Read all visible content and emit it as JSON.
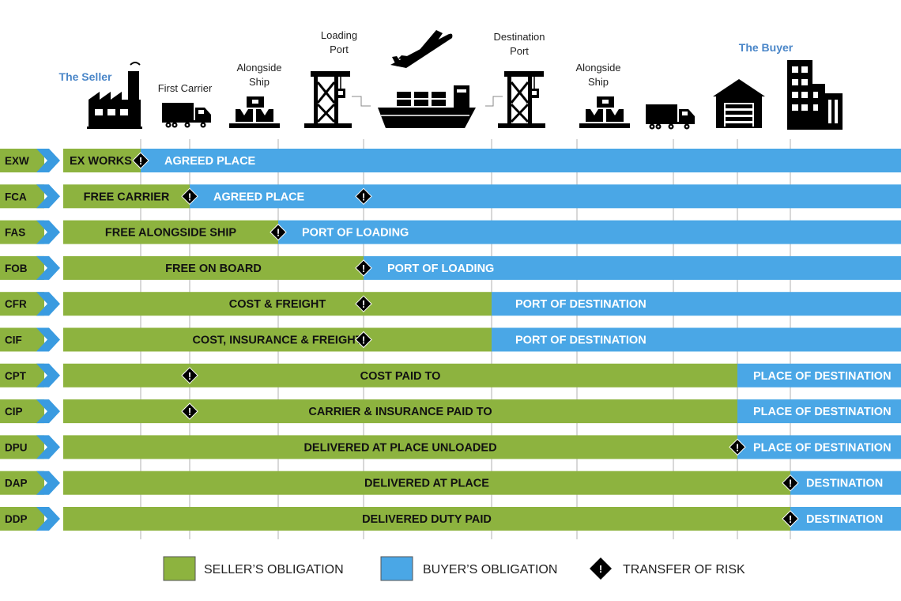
{
  "colors": {
    "seller": "#8db33f",
    "buyer": "#4aa7e6",
    "code_bg": "#8db33f",
    "chevron": "#3a9be0",
    "grid": "#b0b0b0",
    "icon": "#000000",
    "party_label": "#4a86c8"
  },
  "header": {
    "seller_label": "The Seller",
    "buyer_label": "The Buyer",
    "stations": [
      {
        "id": "first-carrier",
        "lines": [
          "First Carrier"
        ],
        "icon": "truck-icon"
      },
      {
        "id": "alongside-ship-origin",
        "lines": [
          "Alongside",
          "Ship"
        ],
        "icon": "pallet-boxes-icon"
      },
      {
        "id": "loading-port",
        "lines": [
          "Loading",
          "Port"
        ],
        "icon": "port-crane-icon"
      },
      {
        "id": "transport",
        "lines": [],
        "icon": "airplane-ship-icon"
      },
      {
        "id": "destination-port",
        "lines": [
          "Destination",
          "Port"
        ],
        "icon": "port-crane-icon"
      },
      {
        "id": "alongside-ship-destination",
        "lines": [
          "Alongside",
          "Ship"
        ],
        "icon": "pallet-boxes-icon"
      },
      {
        "id": "delivery-truck",
        "lines": [],
        "icon": "truck-icon"
      },
      {
        "id": "warehouse",
        "lines": [],
        "icon": "warehouse-icon"
      },
      {
        "id": "buyer-buildings",
        "lines": [],
        "icon": "office-buildings-icon"
      }
    ]
  },
  "rows": [
    {
      "code": "EXW",
      "seller_label": "EX WORKS",
      "buyer_label": "AGREED PLACE",
      "split": 1,
      "risk": [
        1
      ]
    },
    {
      "code": "FCA",
      "seller_label": "FREE CARRIER",
      "buyer_label": "AGREED PLACE",
      "split": 2,
      "risk": [
        2,
        4
      ]
    },
    {
      "code": "FAS",
      "seller_label": "FREE ALONGSIDE SHIP",
      "buyer_label": "PORT OF LOADING",
      "split": 3,
      "risk": [
        3
      ]
    },
    {
      "code": "FOB",
      "seller_label": "FREE  ON BOARD",
      "buyer_label": "PORT OF LOADING",
      "split": 4,
      "risk": [
        4
      ]
    },
    {
      "code": "CFR",
      "seller_label": "COST & FREIGHT",
      "buyer_label": "PORT OF DESTINATION",
      "split": 5,
      "risk": [
        4
      ]
    },
    {
      "code": "CIF",
      "seller_label": "COST, INSURANCE & FREIGHT",
      "buyer_label": "PORT OF DESTINATION",
      "split": 5,
      "risk": [
        4
      ]
    },
    {
      "code": "CPT",
      "seller_label": "COST PAID TO",
      "buyer_label": "PLACE OF DESTINATION",
      "split": 8,
      "risk": [
        2
      ]
    },
    {
      "code": "CIP",
      "seller_label": "CARRIER & INSURANCE PAID TO",
      "buyer_label": "PLACE OF DESTINATION",
      "split": 8,
      "risk": [
        2
      ]
    },
    {
      "code": "DPU",
      "seller_label": "DELIVERED AT PLACE UNLOADED",
      "buyer_label": "PLACE OF DESTINATION",
      "split": 8,
      "risk": [
        8
      ]
    },
    {
      "code": "DAP",
      "seller_label": "DELIVERED AT PLACE",
      "buyer_label": "DESTINATION",
      "split": 9,
      "risk": [
        9
      ]
    },
    {
      "code": "DDP",
      "seller_label": "DELIVERED DUTY PAID",
      "buyer_label": "DESTINATION",
      "split": 9,
      "risk": [
        9
      ]
    }
  ],
  "legend": {
    "seller": "SELLER’S OBLIGATION",
    "buyer": "BUYER’S OBLIGATION",
    "risk": "TRANSFER OF RISK"
  }
}
